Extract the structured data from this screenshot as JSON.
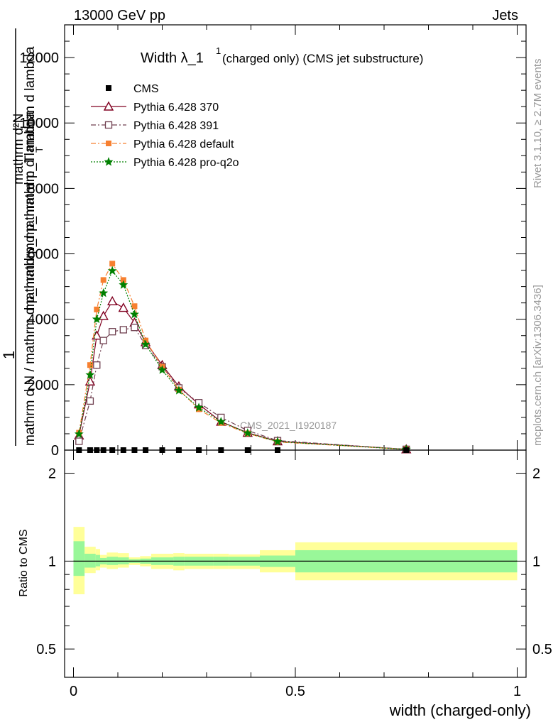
{
  "header": {
    "energy_label": "13000 GeV pp",
    "category_label": "Jets"
  },
  "side_labels": {
    "rivet_version": "Rivet 3.1.10, ≥ 2.7M events",
    "mcplots": "mcplots.cern.ch [arXiv:1306.3436]"
  },
  "main_plot": {
    "title_main": "Width λ_1",
    "title_sup": "1",
    "title_rest": "(charged only) (CMS jet substructure)",
    "ylabel_top": "1",
    "ylabel_line1": "mathrm d N / mathrm d p_mathrmd p_mathrm d lambda",
    "ylabel_numerator": "mathrm d²N",
    "ylabel_denominator": "mathrmd p_mathrm d p_T mathrm d lambda",
    "ylabel_sub": "T",
    "analysis_watermark": "CMS_2021_I1920187",
    "y_tick_labels": [
      "0",
      "2000",
      "4000",
      "6000",
      "8000",
      "10000",
      "12000"
    ]
  },
  "ratio_plot": {
    "ylabel": "Ratio to CMS",
    "y_tick_labels": [
      "0.5",
      "1",
      "2"
    ],
    "x_tick_labels": [
      "0",
      "0.5",
      "1"
    ],
    "xlabel": "width (charged-only)",
    "colors": {
      "inner_band": "#99f799",
      "outer_band": "#ffff99"
    }
  },
  "legend": {
    "entries": [
      {
        "label": "CMS",
        "color": "#000000",
        "marker": "filled-square",
        "line": "none"
      },
      {
        "label": "Pythia 6.428 370",
        "color": "#800020",
        "marker": "open-triangle",
        "line": "solid"
      },
      {
        "label": "Pythia 6.428 391",
        "color": "#704050",
        "marker": "open-square",
        "line": "dash-dot"
      },
      {
        "label": "Pythia 6.428 default",
        "color": "#f78030",
        "marker": "filled-square",
        "line": "dash-dot"
      },
      {
        "label": "Pythia 6.428 pro-q2o",
        "color": "#008000",
        "marker": "star",
        "line": "dotted"
      }
    ]
  },
  "chart_data": {
    "type": "line",
    "x_range": [
      -0.02,
      1.02
    ],
    "ylim_main": [
      0,
      13000
    ],
    "ylim_ratio": [
      0.4,
      2.4
    ],
    "ratio_scale": "log",
    "x": [
      0.0125,
      0.0375,
      0.0525,
      0.0675,
      0.0875,
      0.1125,
      0.1375,
      0.1625,
      0.2,
      0.2375,
      0.2825,
      0.3325,
      0.3925,
      0.46,
      0.75
    ],
    "cms_values": [
      0,
      0,
      0,
      0,
      0,
      0,
      0,
      0,
      0,
      0,
      0,
      0,
      0,
      0,
      0
    ],
    "series": [
      {
        "name": "Pythia 6.428 370",
        "values": [
          450,
          2100,
          3500,
          4100,
          4550,
          4350,
          3900,
          3300,
          2600,
          1950,
          1400,
          870,
          530,
          270,
          25
        ]
      },
      {
        "name": "Pythia 6.428 391",
        "values": [
          270,
          1500,
          2600,
          3350,
          3620,
          3680,
          3750,
          3200,
          2550,
          1900,
          1450,
          1000,
          600,
          290,
          25
        ]
      },
      {
        "name": "Pythia 6.428 default",
        "values": [
          530,
          2600,
          4300,
          5200,
          5700,
          5200,
          4400,
          3350,
          2550,
          1850,
          1250,
          830,
          510,
          250,
          22
        ]
      },
      {
        "name": "Pythia 6.428 pro-q2o",
        "values": [
          490,
          2300,
          4000,
          4800,
          5480,
          5050,
          4150,
          3230,
          2450,
          1820,
          1300,
          870,
          520,
          260,
          22
        ]
      }
    ],
    "ratio_bins": [
      {
        "x0": 0.0,
        "x1": 0.025,
        "inner": [
          0.89,
          1.17
        ],
        "outer": [
          0.77,
          1.31
        ]
      },
      {
        "x0": 0.025,
        "x1": 0.05,
        "inner": [
          0.95,
          1.06
        ],
        "outer": [
          0.91,
          1.12
        ]
      },
      {
        "x0": 0.05,
        "x1": 0.06,
        "inner": [
          0.96,
          1.05
        ],
        "outer": [
          0.93,
          1.1
        ]
      },
      {
        "x0": 0.06,
        "x1": 0.075,
        "inner": [
          0.975,
          1.025
        ],
        "outer": [
          0.95,
          1.05
        ]
      },
      {
        "x0": 0.075,
        "x1": 0.1,
        "inner": [
          0.97,
          1.035
        ],
        "outer": [
          0.94,
          1.07
        ]
      },
      {
        "x0": 0.1,
        "x1": 0.125,
        "inner": [
          0.975,
          1.03
        ],
        "outer": [
          0.95,
          1.065
        ]
      },
      {
        "x0": 0.125,
        "x1": 0.15,
        "inner": [
          0.985,
          1.015
        ],
        "outer": [
          0.97,
          1.03
        ]
      },
      {
        "x0": 0.15,
        "x1": 0.175,
        "inner": [
          0.98,
          1.02
        ],
        "outer": [
          0.96,
          1.04
        ]
      },
      {
        "x0": 0.175,
        "x1": 0.225,
        "inner": [
          0.97,
          1.03
        ],
        "outer": [
          0.94,
          1.06
        ]
      },
      {
        "x0": 0.225,
        "x1": 0.25,
        "inner": [
          0.965,
          1.035
        ],
        "outer": [
          0.93,
          1.065
        ]
      },
      {
        "x0": 0.25,
        "x1": 0.315,
        "inner": [
          0.965,
          1.035
        ],
        "outer": [
          0.94,
          1.06
        ]
      },
      {
        "x0": 0.315,
        "x1": 0.35,
        "inner": [
          0.965,
          1.035
        ],
        "outer": [
          0.94,
          1.06
        ]
      },
      {
        "x0": 0.35,
        "x1": 0.42,
        "inner": [
          0.965,
          1.035
        ],
        "outer": [
          0.94,
          1.055
        ]
      },
      {
        "x0": 0.42,
        "x1": 0.5,
        "inner": [
          0.955,
          1.045
        ],
        "outer": [
          0.915,
          1.09
        ]
      },
      {
        "x0": 0.5,
        "x1": 1.0,
        "inner": [
          0.915,
          1.09
        ],
        "outer": [
          0.86,
          1.16
        ]
      }
    ]
  }
}
